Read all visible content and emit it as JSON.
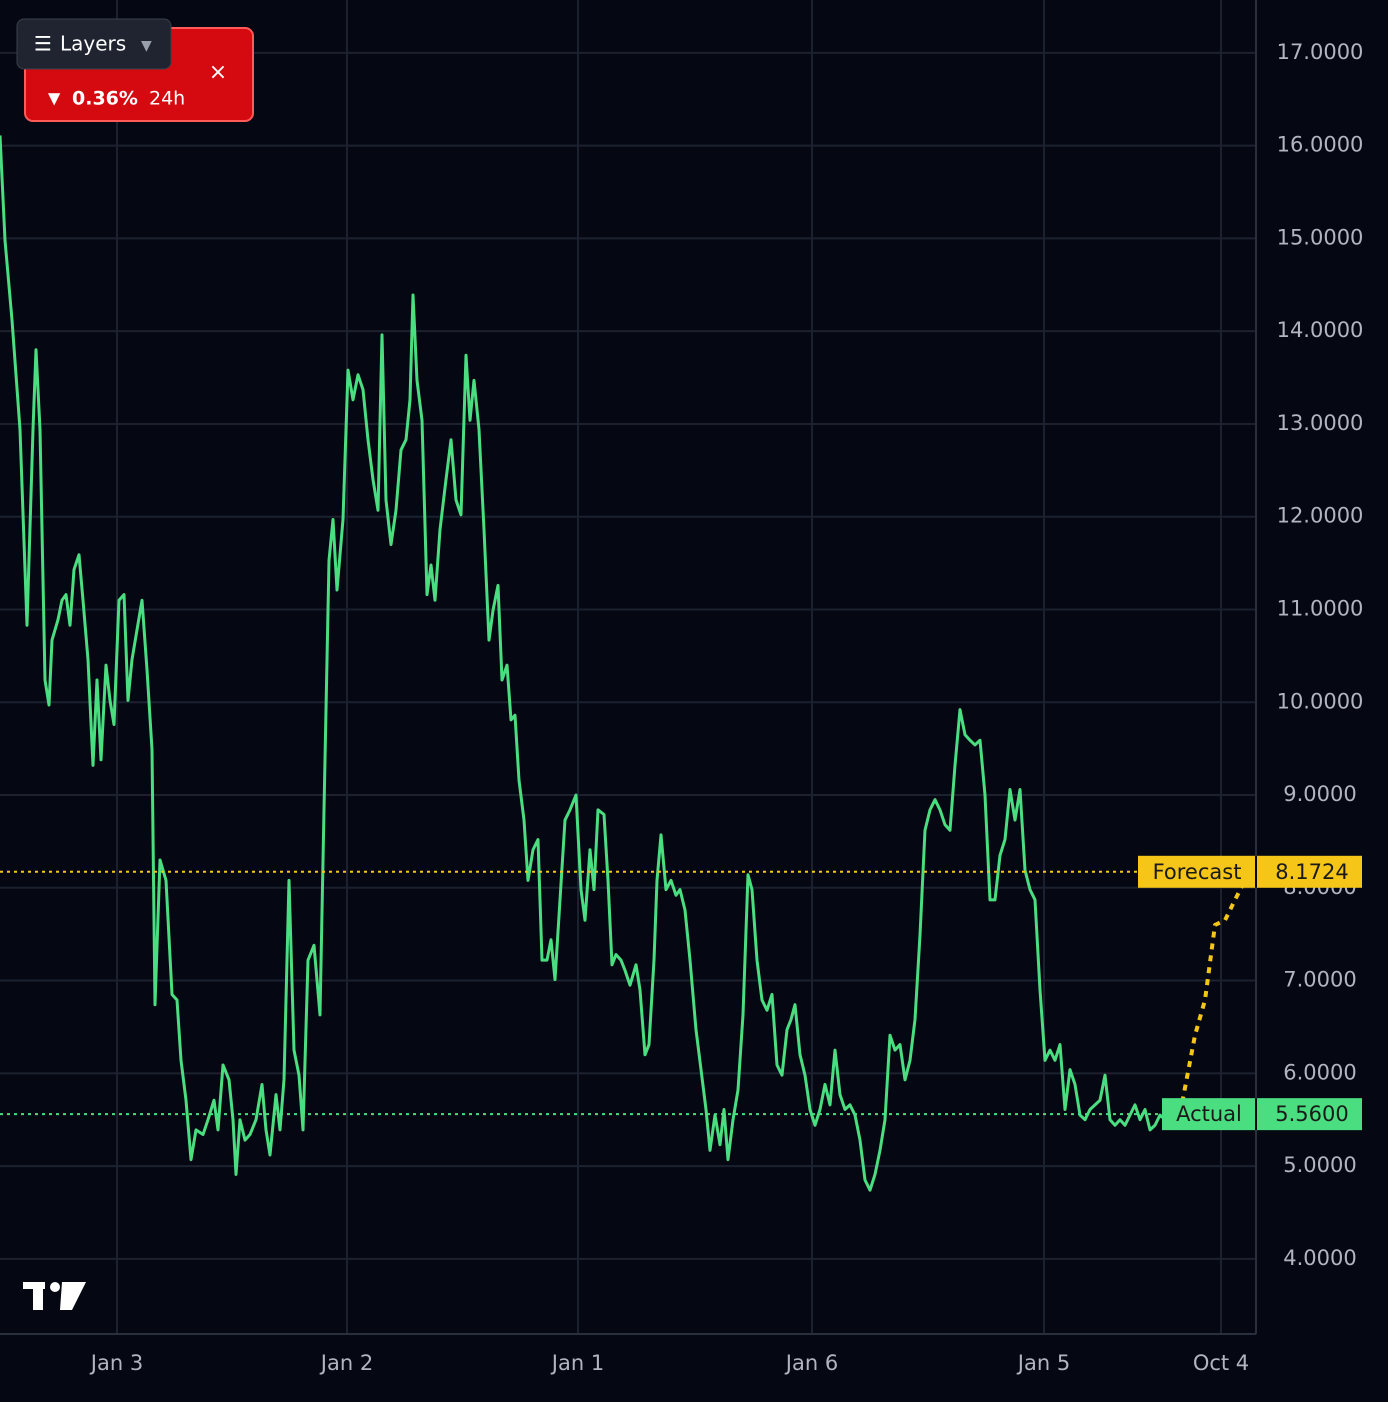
{
  "chart_data": {
    "type": "line",
    "xlim": [
      0,
      1256
    ],
    "ylim": [
      3.19,
      17.57
    ],
    "xticks": [
      {
        "value": 117,
        "label": "Jan 3"
      },
      {
        "value": 347,
        "label": "Jan 2"
      },
      {
        "value": 578,
        "label": "Jan 1"
      },
      {
        "value": 812,
        "label": "Jan 6"
      },
      {
        "value": 1044,
        "label": "Jan 5"
      },
      {
        "value": 1221,
        "label": "Oct 4"
      }
    ],
    "yticks": [
      {
        "value": 4,
        "label": "4.0000"
      },
      {
        "value": 5,
        "label": "5.0000"
      },
      {
        "value": 6,
        "label": "6.0000"
      },
      {
        "value": 7,
        "label": "7.0000"
      },
      {
        "value": 8,
        "label": "8.0000"
      },
      {
        "value": 9,
        "label": "9.0000"
      },
      {
        "value": 10,
        "label": "10.0000"
      },
      {
        "value": 11,
        "label": "11.0000"
      },
      {
        "value": 12,
        "label": "12.0000"
      },
      {
        "value": 13,
        "label": "13.0000"
      },
      {
        "value": 14,
        "label": "14.0000"
      },
      {
        "value": 15,
        "label": "15.0000"
      },
      {
        "value": 16,
        "label": "16.0000"
      },
      {
        "value": 17,
        "label": "17.0000"
      }
    ],
    "grid": true,
    "series": [
      {
        "color": "#4ade80",
        "dash": false,
        "x": [
          0,
          5,
          12,
          20,
          27,
          33,
          36,
          40,
          45,
          49,
          52,
          58,
          62,
          66,
          70,
          74,
          79,
          83,
          88,
          93,
          97,
          101,
          106,
          110,
          114,
          119,
          124,
          128,
          132,
          137,
          142,
          147,
          152,
          155,
          160,
          166,
          172,
          177,
          181,
          186,
          191,
          196,
          203,
          208,
          214,
          218,
          223,
          229,
          233,
          236,
          240,
          245,
          250,
          256,
          262,
          266,
          270,
          276,
          280,
          284,
          289,
          294,
          299,
          303,
          308,
          314,
          320,
          324,
          329,
          333,
          337,
          343,
          348,
          353,
          358,
          363,
          368,
          373,
          378,
          382,
          386,
          391,
          396,
          401,
          406,
          410,
          413,
          417,
          422,
          427,
          431,
          435,
          440,
          446,
          451,
          456,
          461,
          466,
          470,
          474,
          479,
          484,
          489,
          493,
          498,
          502,
          507,
          511,
          515,
          519,
          524,
          528,
          533,
          538,
          542,
          547,
          551,
          555,
          560,
          565,
          570,
          576,
          581,
          585,
          590,
          594,
          598,
          604,
          608,
          612,
          616,
          621,
          625,
          630,
          636,
          640,
          645,
          649,
          654,
          657,
          661,
          666,
          671,
          676,
          680,
          685,
          690,
          696,
          701,
          706,
          710,
          715,
          720,
          724,
          728,
          733,
          738,
          743,
          748,
          752,
          757,
          762,
          767,
          772,
          777,
          782,
          787,
          791,
          795,
          800,
          805,
          810,
          815,
          820,
          825,
          830,
          835,
          840,
          845,
          850,
          855,
          860,
          865,
          870,
          875,
          880,
          885,
          890,
          895,
          900,
          905,
          910,
          915,
          920,
          925,
          930,
          935,
          940,
          945,
          950,
          955,
          960,
          965,
          970,
          975,
          980,
          985,
          990,
          995,
          1000,
          1005,
          1010,
          1015,
          1020,
          1025,
          1030,
          1035,
          1040,
          1045,
          1050,
          1055,
          1060,
          1065,
          1070,
          1075,
          1080,
          1085,
          1090,
          1095,
          1100,
          1105,
          1110,
          1115,
          1120,
          1125,
          1130,
          1135,
          1140,
          1145,
          1150,
          1155,
          1160,
          1165,
          1170,
          1175,
          1180
        ],
        "values": [
          16.11,
          14.98,
          14.12,
          12.94,
          10.83,
          12.94,
          13.8,
          12.94,
          10.24,
          9.97,
          10.67,
          10.89,
          11.1,
          11.16,
          10.83,
          11.43,
          11.59,
          11.1,
          10.46,
          9.32,
          10.24,
          9.38,
          10.4,
          10.02,
          9.76,
          11.1,
          11.16,
          10.02,
          10.46,
          10.78,
          11.1,
          10.35,
          9.49,
          6.74,
          8.3,
          8.08,
          6.85,
          6.79,
          6.14,
          5.71,
          5.07,
          5.39,
          5.34,
          5.5,
          5.71,
          5.39,
          6.09,
          5.93,
          5.5,
          4.91,
          5.5,
          5.28,
          5.34,
          5.5,
          5.88,
          5.39,
          5.12,
          5.77,
          5.39,
          5.93,
          8.08,
          6.25,
          5.98,
          5.39,
          7.22,
          7.38,
          6.63,
          8.84,
          11.53,
          11.97,
          11.21,
          11.97,
          13.58,
          13.26,
          13.53,
          13.37,
          12.83,
          12.4,
          12.07,
          13.96,
          12.18,
          11.7,
          12.07,
          12.72,
          12.83,
          13.26,
          14.39,
          13.47,
          13.04,
          11.16,
          11.48,
          11.1,
          11.86,
          12.4,
          12.83,
          12.18,
          12.02,
          13.74,
          13.04,
          13.47,
          12.94,
          11.86,
          10.67,
          10.99,
          11.26,
          10.24,
          10.4,
          9.81,
          9.86,
          9.16,
          8.73,
          8.08,
          8.41,
          8.52,
          7.22,
          7.22,
          7.44,
          7.01,
          7.87,
          8.73,
          8.84,
          9.0,
          7.98,
          7.65,
          8.41,
          7.98,
          8.84,
          8.79,
          8.08,
          7.17,
          7.28,
          7.22,
          7.11,
          6.95,
          7.17,
          6.9,
          6.2,
          6.31,
          7.22,
          8.08,
          8.57,
          7.98,
          8.08,
          7.92,
          7.98,
          7.76,
          7.22,
          6.47,
          6.04,
          5.61,
          5.17,
          5.55,
          5.23,
          5.61,
          5.07,
          5.5,
          5.82,
          6.63,
          8.14,
          7.98,
          7.22,
          6.79,
          6.68,
          6.85,
          6.09,
          5.98,
          6.47,
          6.58,
          6.74,
          6.2,
          5.98,
          5.61,
          5.44,
          5.61,
          5.88,
          5.66,
          6.25,
          5.77,
          5.61,
          5.66,
          5.55,
          5.28,
          4.85,
          4.74,
          4.91,
          5.17,
          5.5,
          6.41,
          6.25,
          6.31,
          5.93,
          6.14,
          6.58,
          7.49,
          8.62,
          8.84,
          8.95,
          8.84,
          8.68,
          8.62,
          9.32,
          9.92,
          9.65,
          9.59,
          9.54,
          9.59,
          9.0,
          7.87,
          7.87,
          8.35,
          8.52,
          9.06,
          8.73,
          9.06,
          8.19,
          7.98,
          7.87,
          6.9,
          6.14,
          6.25,
          6.14,
          6.31,
          5.61,
          6.04,
          5.88,
          5.55,
          5.5,
          5.61,
          5.66,
          5.71,
          5.98,
          5.5,
          5.44,
          5.5,
          5.44,
          5.55,
          5.66,
          5.5,
          5.61,
          5.39,
          5.44,
          5.55,
          5.5,
          5.61,
          5.55,
          5.55
        ]
      },
      {
        "color": "#f5c518",
        "dash": true,
        "x": [
          1180,
          1195,
          1205,
          1215,
          1225,
          1235,
          1245
        ],
        "values": [
          5.56,
          6.41,
          6.79,
          7.6,
          7.65,
          7.87,
          8.08
        ]
      }
    ],
    "levels": [
      {
        "name": "Forecast",
        "value": 8.1724,
        "color": "#f5c518"
      },
      {
        "name": "Actual",
        "value": 5.56,
        "value_label": "5.5600",
        "color": "#4ade80"
      }
    ]
  },
  "widgets": {
    "layers_button": "Layers",
    "change": "0.36%",
    "period": "24h"
  }
}
